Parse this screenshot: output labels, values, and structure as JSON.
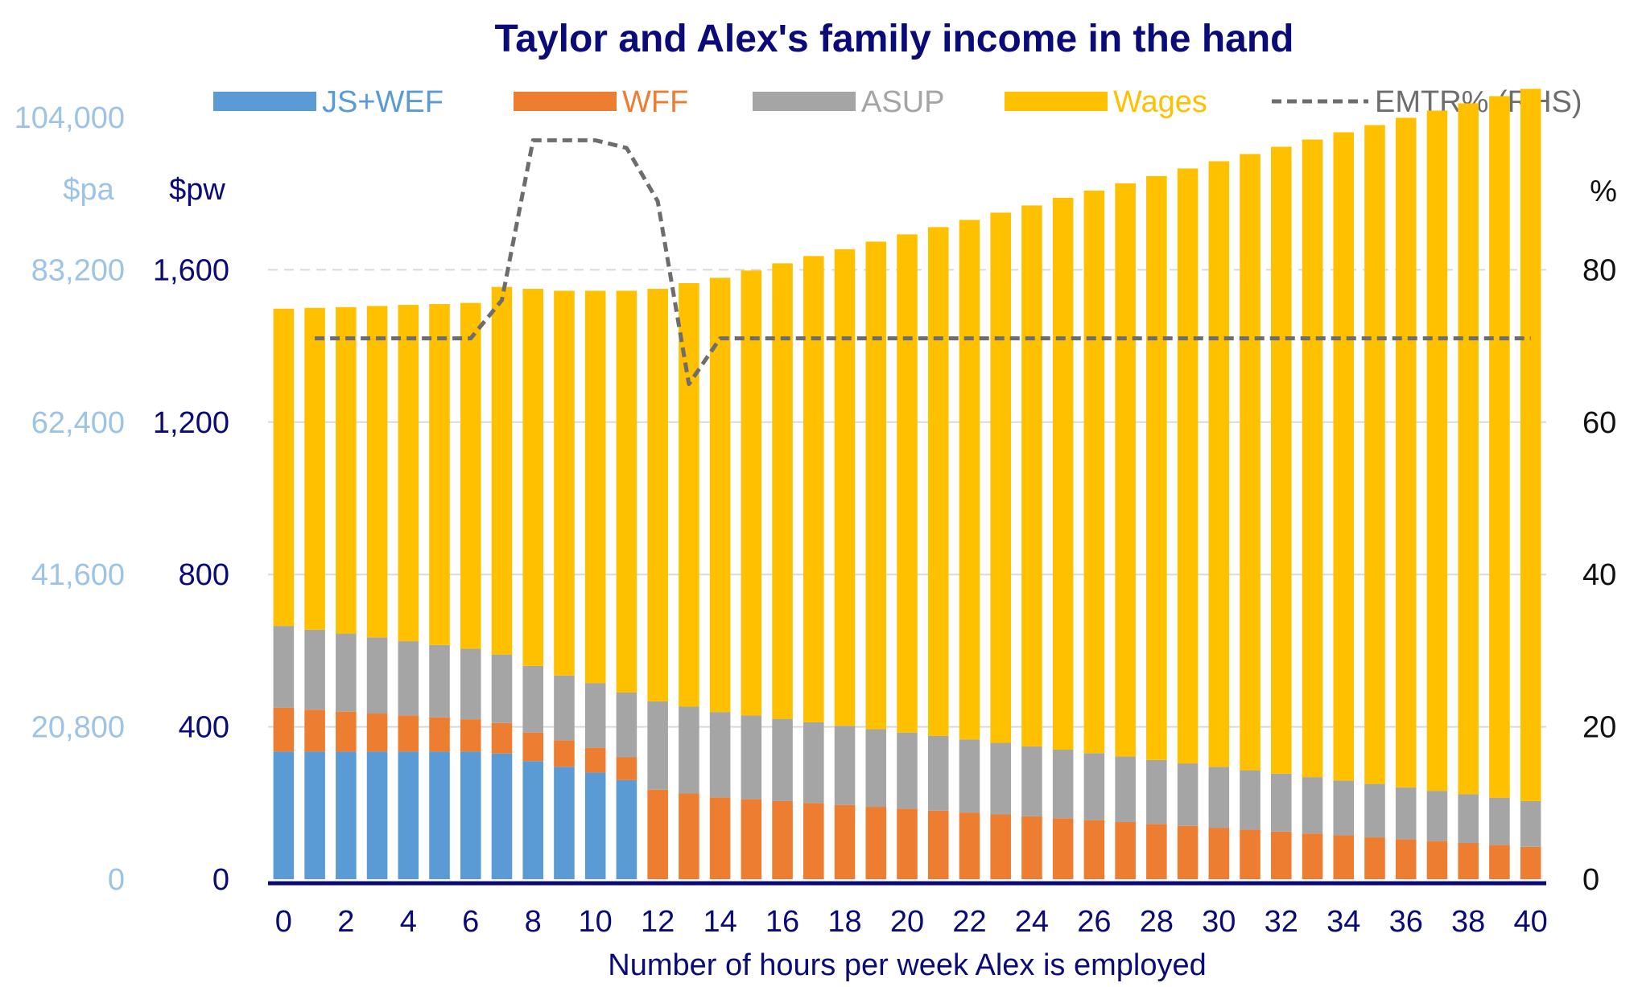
{
  "chart_data": {
    "type": "bar",
    "stacked": true,
    "title": "Taylor and Alex's family income in the hand",
    "xlabel": "Number of hours per week Alex is employed",
    "ylabel_left_pa": "$pa",
    "ylabel_left_pw": "$pw",
    "ylabel_right": "%",
    "ylim": [
      0,
      2000
    ],
    "y2lim": [
      0,
      100
    ],
    "pw_ticks": [
      "0",
      "400",
      "800",
      "1,200",
      "1,600"
    ],
    "pa_ticks": [
      "0",
      "20,800",
      "41,600",
      "62,400",
      "83,200",
      "104,000"
    ],
    "rhs_ticks": [
      "0",
      "20",
      "40",
      "60",
      "80"
    ],
    "x": [
      0,
      1,
      2,
      3,
      4,
      5,
      6,
      7,
      8,
      9,
      10,
      11,
      12,
      13,
      14,
      15,
      16,
      17,
      18,
      19,
      20,
      21,
      22,
      23,
      24,
      25,
      26,
      27,
      28,
      29,
      30,
      31,
      32,
      33,
      34,
      35,
      36,
      37,
      38,
      39,
      40
    ],
    "x_tick_labels": [
      "0",
      "2",
      "4",
      "6",
      "8",
      "10",
      "12",
      "14",
      "16",
      "18",
      "20",
      "22",
      "24",
      "26",
      "28",
      "30",
      "32",
      "34",
      "36",
      "38",
      "40"
    ],
    "grid": "horizontal",
    "legend_position": "top",
    "series": [
      {
        "name": "JS+WEF",
        "color": "#5b9bd5",
        "values": [
          335,
          335,
          335,
          335,
          335,
          335,
          335,
          330,
          310,
          295,
          280,
          260,
          0,
          0,
          0,
          0,
          0,
          0,
          0,
          0,
          0,
          0,
          0,
          0,
          0,
          0,
          0,
          0,
          0,
          0,
          0,
          0,
          0,
          0,
          0,
          0,
          0,
          0,
          0,
          0,
          0
        ]
      },
      {
        "name": "WFF",
        "color": "#ed7d31",
        "values": [
          115,
          110,
          105,
          100,
          95,
          90,
          85,
          80,
          75,
          70,
          65,
          60,
          235,
          225,
          215,
          210,
          205,
          200,
          195,
          190,
          185,
          180,
          175,
          170,
          165,
          160,
          155,
          150,
          145,
          140,
          135,
          130,
          125,
          120,
          115,
          110,
          105,
          100,
          95,
          90,
          85
        ]
      },
      {
        "name": "ASUP",
        "color": "#a5a5a5",
        "values": [
          215,
          210,
          205,
          200,
          195,
          190,
          185,
          180,
          175,
          170,
          170,
          170,
          232,
          228,
          224,
          220,
          216,
          212,
          208,
          204,
          200,
          196,
          192,
          188,
          184,
          180,
          176,
          172,
          168,
          164,
          160,
          156,
          152,
          148,
          144,
          140,
          136,
          132,
          128,
          124,
          120
        ]
      },
      {
        "name": "Wages",
        "color": "#ffc000",
        "values": [
          833,
          845,
          857,
          870,
          883,
          895,
          908,
          965,
          990,
          1010,
          1030,
          1055,
          1083,
          1112,
          1140,
          1168,
          1196,
          1224,
          1251,
          1280,
          1308,
          1336,
          1364,
          1392,
          1420,
          1449,
          1477,
          1505,
          1533,
          1562,
          1590,
          1618,
          1646,
          1674,
          1702,
          1730,
          1758,
          1786,
          1814,
          1842,
          1870
        ]
      }
    ],
    "line_series": {
      "name": "EMTR% (RHS)",
      "color": "#6d6d6d",
      "axis": "right",
      "x": [
        1,
        2,
        3,
        4,
        5,
        6,
        7,
        8,
        9,
        10,
        11,
        12,
        13,
        14,
        15,
        16,
        17,
        18,
        19,
        20,
        21,
        22,
        23,
        24,
        25,
        26,
        27,
        28,
        29,
        30,
        31,
        32,
        33,
        34,
        35,
        36,
        37,
        38,
        39,
        40
      ],
      "values": [
        71,
        71,
        71,
        71,
        71,
        71,
        76,
        97,
        97,
        97,
        96,
        89,
        65,
        71,
        71,
        71,
        71,
        71,
        71,
        71,
        71,
        71,
        71,
        71,
        71,
        71,
        71,
        71,
        71,
        71,
        71,
        71,
        71,
        71,
        71,
        71,
        71,
        71,
        71,
        71
      ]
    }
  }
}
